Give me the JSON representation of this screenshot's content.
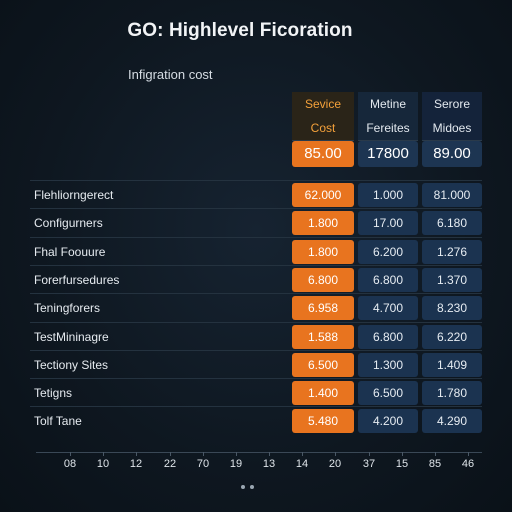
{
  "title": "GO: Highlevel Ficoration",
  "subtitle": "Infigration cost",
  "header": {
    "row1": [
      "Sevice",
      "Metine",
      "Serore"
    ],
    "row2": [
      "Cost",
      "Fereites",
      "Midoes"
    ]
  },
  "totals": [
    "85.00",
    "17800",
    "89.00"
  ],
  "rows": [
    {
      "label": "Flehliorngerect",
      "values": [
        "62.000",
        "1.000",
        "81.000"
      ]
    },
    {
      "label": "Configurners",
      "values": [
        "1.800",
        "17.00",
        "6.180"
      ]
    },
    {
      "label": "Fhal Foouure",
      "values": [
        "1.800",
        "6.200",
        "1.276"
      ]
    },
    {
      "label": "Forerfursedures",
      "values": [
        "6.800",
        "6.800",
        "1.370"
      ]
    },
    {
      "label": "Teningforers",
      "values": [
        "6.958",
        "4.700",
        "8.230"
      ]
    },
    {
      "label": "TestMininagre",
      "values": [
        "1.588",
        "6.800",
        "6.220"
      ]
    },
    {
      "label": "Tectiony Sites",
      "values": [
        "6.500",
        "1.300",
        "1.409"
      ]
    },
    {
      "label": "Tetigns",
      "values": [
        "1.400",
        "6.500",
        "1.780"
      ]
    },
    {
      "label": "Tolf Tane",
      "values": [
        "5.480",
        "4.200",
        "4.290"
      ]
    }
  ],
  "axis_labels": [
    "08",
    "10",
    "12",
    "22",
    "70",
    "19",
    "13",
    "14",
    "20",
    "37",
    "15",
    "85",
    "46"
  ],
  "colors": {
    "accent_orange": "#e8741f",
    "cell_navy": "#1b3350",
    "background": "#0e1720"
  }
}
